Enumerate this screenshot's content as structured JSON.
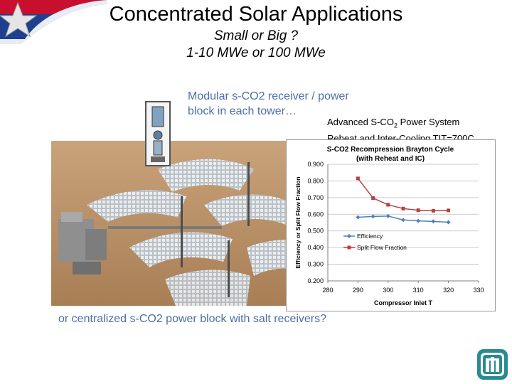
{
  "slide": {
    "title": "Concentrated Solar Applications",
    "subtitle_line1": "Small or Big ?",
    "subtitle_line2": "1-10 MWe  or 100 MWe",
    "callout_line1": "Modular s-CO2 receiver / power",
    "callout_line2": "block in each tower…",
    "system_label_line1_pre": "Advanced S-CO",
    "system_label_line1_sub": "2",
    "system_label_line1_post": " Power System",
    "system_label_line2": "Reheat and Inter-Cooling   TIT=700C",
    "bottom_question": "or centralized s-CO2 power block with salt receivers?",
    "icons": [
      "star-flag-logo-icon",
      "sandia-logo-icon",
      "solar-field-image",
      "tower-receiver-image"
    ]
  },
  "chart_data": {
    "type": "line",
    "title_line1": "S-CO2 Recompression Brayton Cycle",
    "title_line2": "(with Reheat and IC)",
    "xlabel": "Compressor Inlet T",
    "ylabel": "Efficiency or Split Flow Fraction",
    "xlim": [
      280,
      330
    ],
    "ylim": [
      0.2,
      0.9
    ],
    "xticks": [
      "280",
      "290",
      "300",
      "310",
      "320",
      "330"
    ],
    "yticks": [
      "0.200",
      "0.300",
      "0.400",
      "0.500",
      "0.600",
      "0.700",
      "0.800",
      "0.900"
    ],
    "grid": true,
    "legend_placement": "inside-left",
    "series": [
      {
        "name": "Efficiency",
        "color": "#4f7fc0",
        "marker": "diamond",
        "x": [
          290,
          295,
          300,
          305,
          310,
          315,
          320
        ],
        "y": [
          0.582,
          0.587,
          0.589,
          0.566,
          0.56,
          0.557,
          0.552
        ]
      },
      {
        "name": "Split Flow Fraction",
        "color": "#b8403f",
        "marker": "square",
        "x": [
          290,
          295,
          300,
          305,
          310,
          315,
          320
        ],
        "y": [
          0.815,
          0.697,
          0.657,
          0.634,
          0.624,
          0.621,
          0.623
        ]
      }
    ]
  }
}
